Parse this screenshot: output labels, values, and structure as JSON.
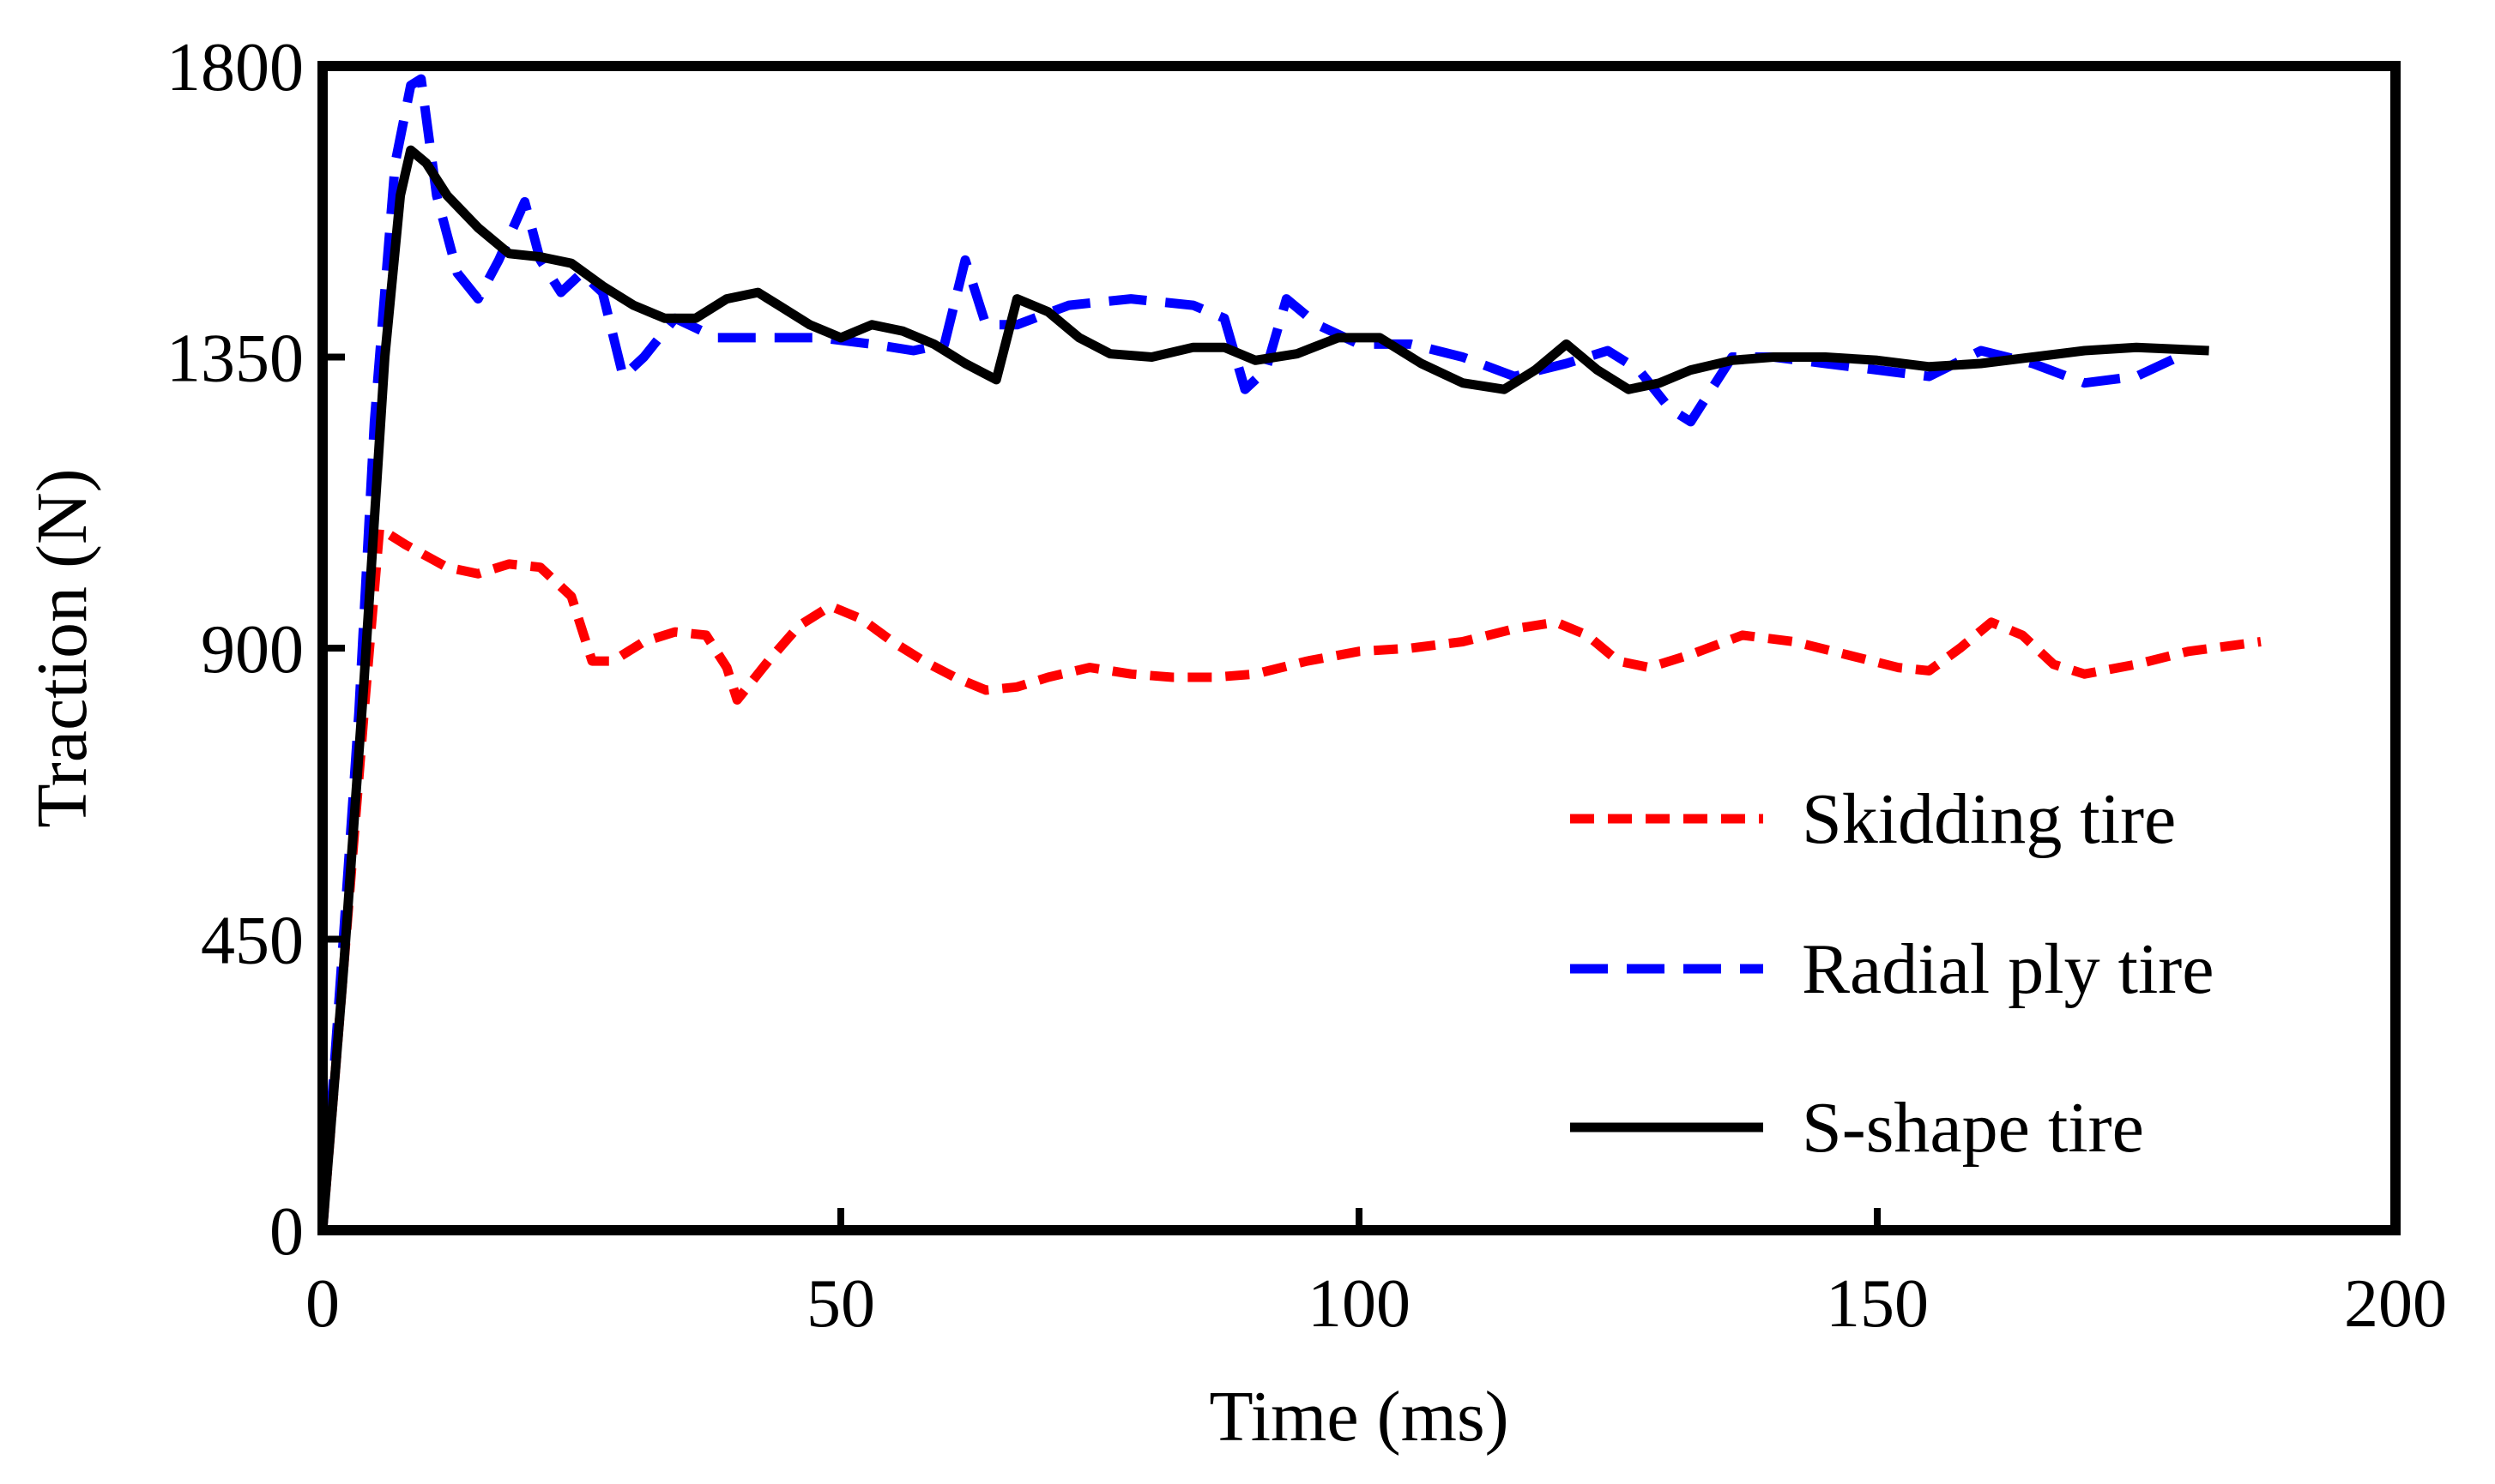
{
  "chart_data": {
    "type": "line",
    "title": "",
    "xlabel": "Time (ms)",
    "ylabel": "Traction (N)",
    "xlim": [
      0,
      200
    ],
    "ylim": [
      0,
      1800
    ],
    "xticks": [
      0,
      50,
      100,
      150,
      200
    ],
    "yticks": [
      0,
      450,
      900,
      1350,
      1800
    ],
    "xtick_labels": [
      "0",
      "50",
      "100",
      "150",
      "200"
    ],
    "ytick_labels": [
      "0",
      "450",
      "900",
      "1350",
      "1800"
    ],
    "grid": false,
    "legend_position": "lower-right",
    "series": [
      {
        "name": "Skidding tire",
        "color": "#ff0000",
        "style": "dashed",
        "x": [
          0,
          2,
          4,
          5.5,
          8,
          12,
          15,
          18,
          21,
          24,
          26,
          28,
          31,
          34,
          37,
          39,
          40,
          43,
          46,
          49,
          52,
          55,
          58,
          61,
          64,
          67,
          70,
          74,
          78,
          82,
          86,
          90,
          95,
          100,
          105,
          110,
          115,
          119,
          122,
          125,
          128,
          132,
          137,
          142,
          147,
          152,
          155,
          158,
          161,
          164,
          167,
          170,
          175,
          180,
          187
        ],
        "y": [
          0,
          400,
          800,
          1085,
          1060,
          1025,
          1015,
          1030,
          1025,
          980,
          880,
          880,
          910,
          925,
          920,
          870,
          820,
          880,
          935,
          965,
          945,
          910,
          880,
          855,
          835,
          840,
          855,
          870,
          860,
          855,
          855,
          860,
          880,
          895,
          900,
          910,
          930,
          940,
          920,
          880,
          870,
          890,
          920,
          910,
          890,
          870,
          865,
          900,
          940,
          920,
          875,
          860,
          875,
          895,
          910
        ]
      },
      {
        "name": "Radial ply tire",
        "color": "#0000ff",
        "style": "dashed",
        "x": [
          0,
          2,
          3.5,
          5,
          7,
          8.5,
          9.5,
          11,
          13,
          15,
          17,
          19.5,
          21,
          23,
          25,
          27,
          29,
          31,
          34,
          38,
          43,
          48,
          53,
          57,
          60,
          62,
          64,
          67,
          72,
          78,
          84,
          87,
          89,
          91,
          93,
          96,
          100,
          105,
          110,
          115,
          120,
          124,
          127,
          130,
          132,
          134,
          136,
          140,
          145,
          150,
          155,
          160,
          165,
          170,
          175,
          179
        ],
        "y": [
          0,
          450,
          800,
          1250,
          1650,
          1770,
          1780,
          1600,
          1480,
          1440,
          1500,
          1590,
          1500,
          1450,
          1480,
          1450,
          1320,
          1350,
          1410,
          1380,
          1380,
          1380,
          1370,
          1360,
          1370,
          1500,
          1400,
          1400,
          1430,
          1440,
          1430,
          1410,
          1300,
          1330,
          1440,
          1400,
          1370,
          1370,
          1350,
          1320,
          1340,
          1360,
          1330,
          1270,
          1250,
          1300,
          1350,
          1350,
          1340,
          1330,
          1320,
          1360,
          1340,
          1310,
          1320,
          1350
        ]
      },
      {
        "name": "S-shape tire",
        "color": "#000000",
        "style": "solid",
        "x": [
          0,
          2,
          4,
          6,
          7.5,
          8.5,
          10,
          12,
          15,
          18,
          21,
          24,
          27,
          30,
          33,
          36,
          39,
          42,
          44,
          47,
          50,
          53,
          56,
          59,
          62,
          65,
          67,
          70,
          73,
          76,
          80,
          84,
          87,
          90,
          94,
          98,
          102,
          106,
          110,
          114,
          117,
          120,
          123,
          126,
          129,
          132,
          136,
          140,
          145,
          150,
          155,
          160,
          165,
          170,
          175,
          182
        ],
        "y": [
          0,
          400,
          850,
          1350,
          1600,
          1670,
          1650,
          1600,
          1550,
          1510,
          1505,
          1495,
          1460,
          1430,
          1410,
          1410,
          1440,
          1450,
          1430,
          1400,
          1380,
          1400,
          1390,
          1370,
          1340,
          1315,
          1440,
          1420,
          1380,
          1355,
          1350,
          1365,
          1365,
          1345,
          1355,
          1380,
          1380,
          1340,
          1310,
          1300,
          1330,
          1370,
          1330,
          1300,
          1310,
          1330,
          1345,
          1350,
          1350,
          1345,
          1335,
          1340,
          1350,
          1360,
          1365,
          1360
        ]
      }
    ]
  }
}
